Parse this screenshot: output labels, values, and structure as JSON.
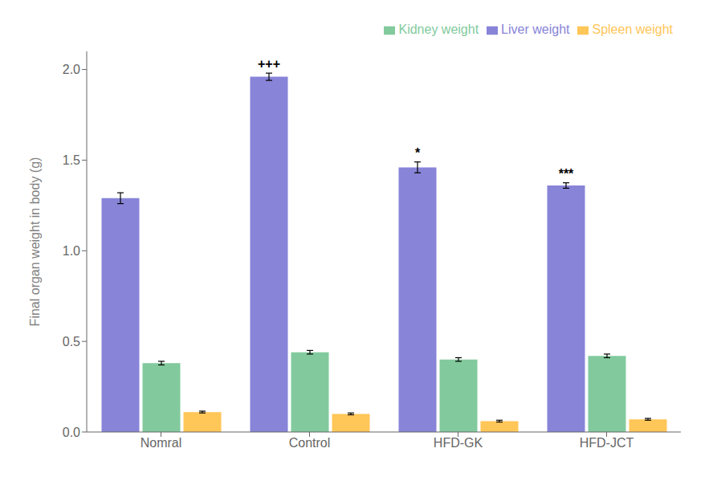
{
  "chart_data": {
    "type": "bar",
    "categories": [
      "Nomral",
      "Control",
      "HFD-GK",
      "HFD-JCT"
    ],
    "series": [
      {
        "name": "Liver weight",
        "color": "#8884d8",
        "values": [
          1.29,
          1.96,
          1.46,
          1.36
        ],
        "errors": [
          0.03,
          0.02,
          0.03,
          0.015
        ]
      },
      {
        "name": "Kidney weight",
        "color": "#82ca9d",
        "values": [
          0.38,
          0.44,
          0.4,
          0.42
        ],
        "errors": [
          0.01,
          0.01,
          0.01,
          0.01
        ]
      },
      {
        "name": "Spleen weight",
        "color": "#ffc658",
        "values": [
          0.11,
          0.1,
          0.06,
          0.07
        ],
        "errors": [
          0.005,
          0.005,
          0.005,
          0.005
        ]
      }
    ],
    "ylabel": "Final organ weight in body (g)",
    "ylim": [
      0.0,
      2.1
    ],
    "yticks": [
      {
        "value": 0,
        "label": "0.0"
      },
      0.5,
      {
        "value": 1,
        "label": "1.0"
      },
      1.5,
      {
        "value": 2,
        "label": "2.0"
      }
    ],
    "grid": false,
    "legend": "upper right",
    "annotations": [
      {
        "text": "+++",
        "category": "Control",
        "series": "Liver weight"
      },
      {
        "text": "*",
        "category": "HFD-GK",
        "series": "Liver weight"
      },
      {
        "text": "***",
        "category": "HFD-JCT",
        "series": "Liver weight"
      }
    ]
  }
}
